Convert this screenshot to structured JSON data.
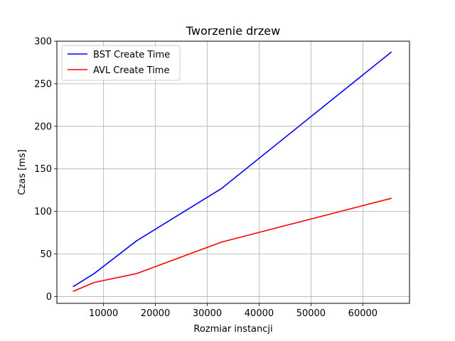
{
  "chart_data": {
    "type": "line",
    "title": "Tworzenie drzew",
    "xlabel": "Rozmiar instancji",
    "ylabel": "Czas [ms]",
    "xlim": [
      1000,
      69000
    ],
    "ylim": [
      -8,
      300
    ],
    "xticks": [
      10000,
      20000,
      30000,
      40000,
      50000,
      60000
    ],
    "yticks": [
      0,
      50,
      100,
      150,
      200,
      250,
      300
    ],
    "grid": true,
    "legend_position": "top-left",
    "x": [
      4096,
      8192,
      16384,
      32768,
      65536
    ],
    "series": [
      {
        "name": "BST Create Time",
        "color": "#0000ff",
        "values": [
          11.5,
          27,
          65.5,
          127,
          287.5
        ]
      },
      {
        "name": "AVL Create Time",
        "color": "#ff0000",
        "values": [
          6,
          16.5,
          27,
          64,
          115.5
        ]
      }
    ]
  }
}
